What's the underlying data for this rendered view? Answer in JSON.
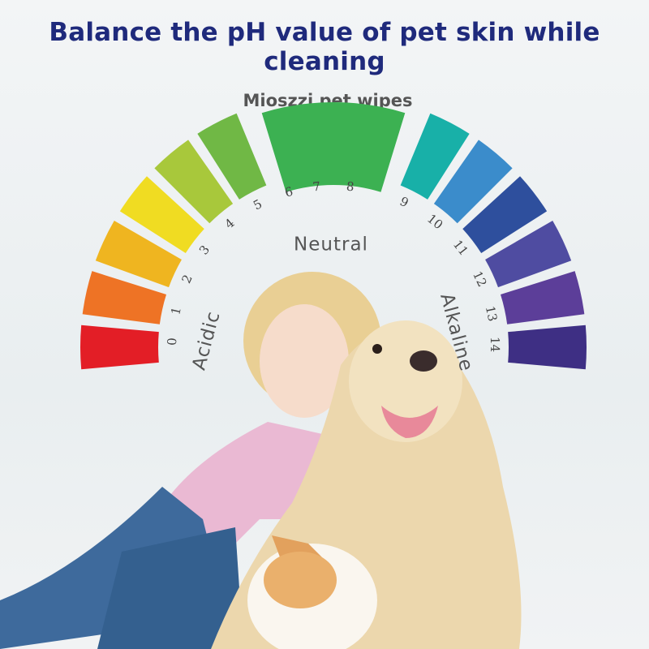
{
  "header": {
    "title": "Balance the pH value of pet skin while cleaning"
  },
  "brand_label": "Mioszzi pet wipes",
  "scale": {
    "numbers": [
      "0",
      "1",
      "2",
      "3",
      "4",
      "5",
      "6",
      "7",
      "8",
      "9",
      "10",
      "11",
      "12",
      "13",
      "14"
    ],
    "zones": {
      "acidic": "Acidic",
      "neutral": "Neutral",
      "alkaline": "Alkaline"
    },
    "segments": [
      {
        "label": "0",
        "color": "#e31e26"
      },
      {
        "label": "1",
        "color": "#ee7325"
      },
      {
        "label": "2",
        "color": "#efb520"
      },
      {
        "label": "3",
        "color": "#f0dc22"
      },
      {
        "label": "4",
        "color": "#a8c83b"
      },
      {
        "label": "5",
        "color": "#70b845"
      },
      {
        "label": "6-8",
        "color": "#3cb152"
      },
      {
        "label": "9",
        "color": "#18b0a8"
      },
      {
        "label": "10",
        "color": "#3b8ccb"
      },
      {
        "label": "11",
        "color": "#2e4f9d"
      },
      {
        "label": "12",
        "color": "#4f4ca1"
      },
      {
        "label": "13",
        "color": "#5c3e99"
      },
      {
        "label": "14",
        "color": "#3e2f84"
      }
    ]
  },
  "photo": {
    "subjects": [
      "girl-icon",
      "dog-icon",
      "cat-icon"
    ]
  }
}
